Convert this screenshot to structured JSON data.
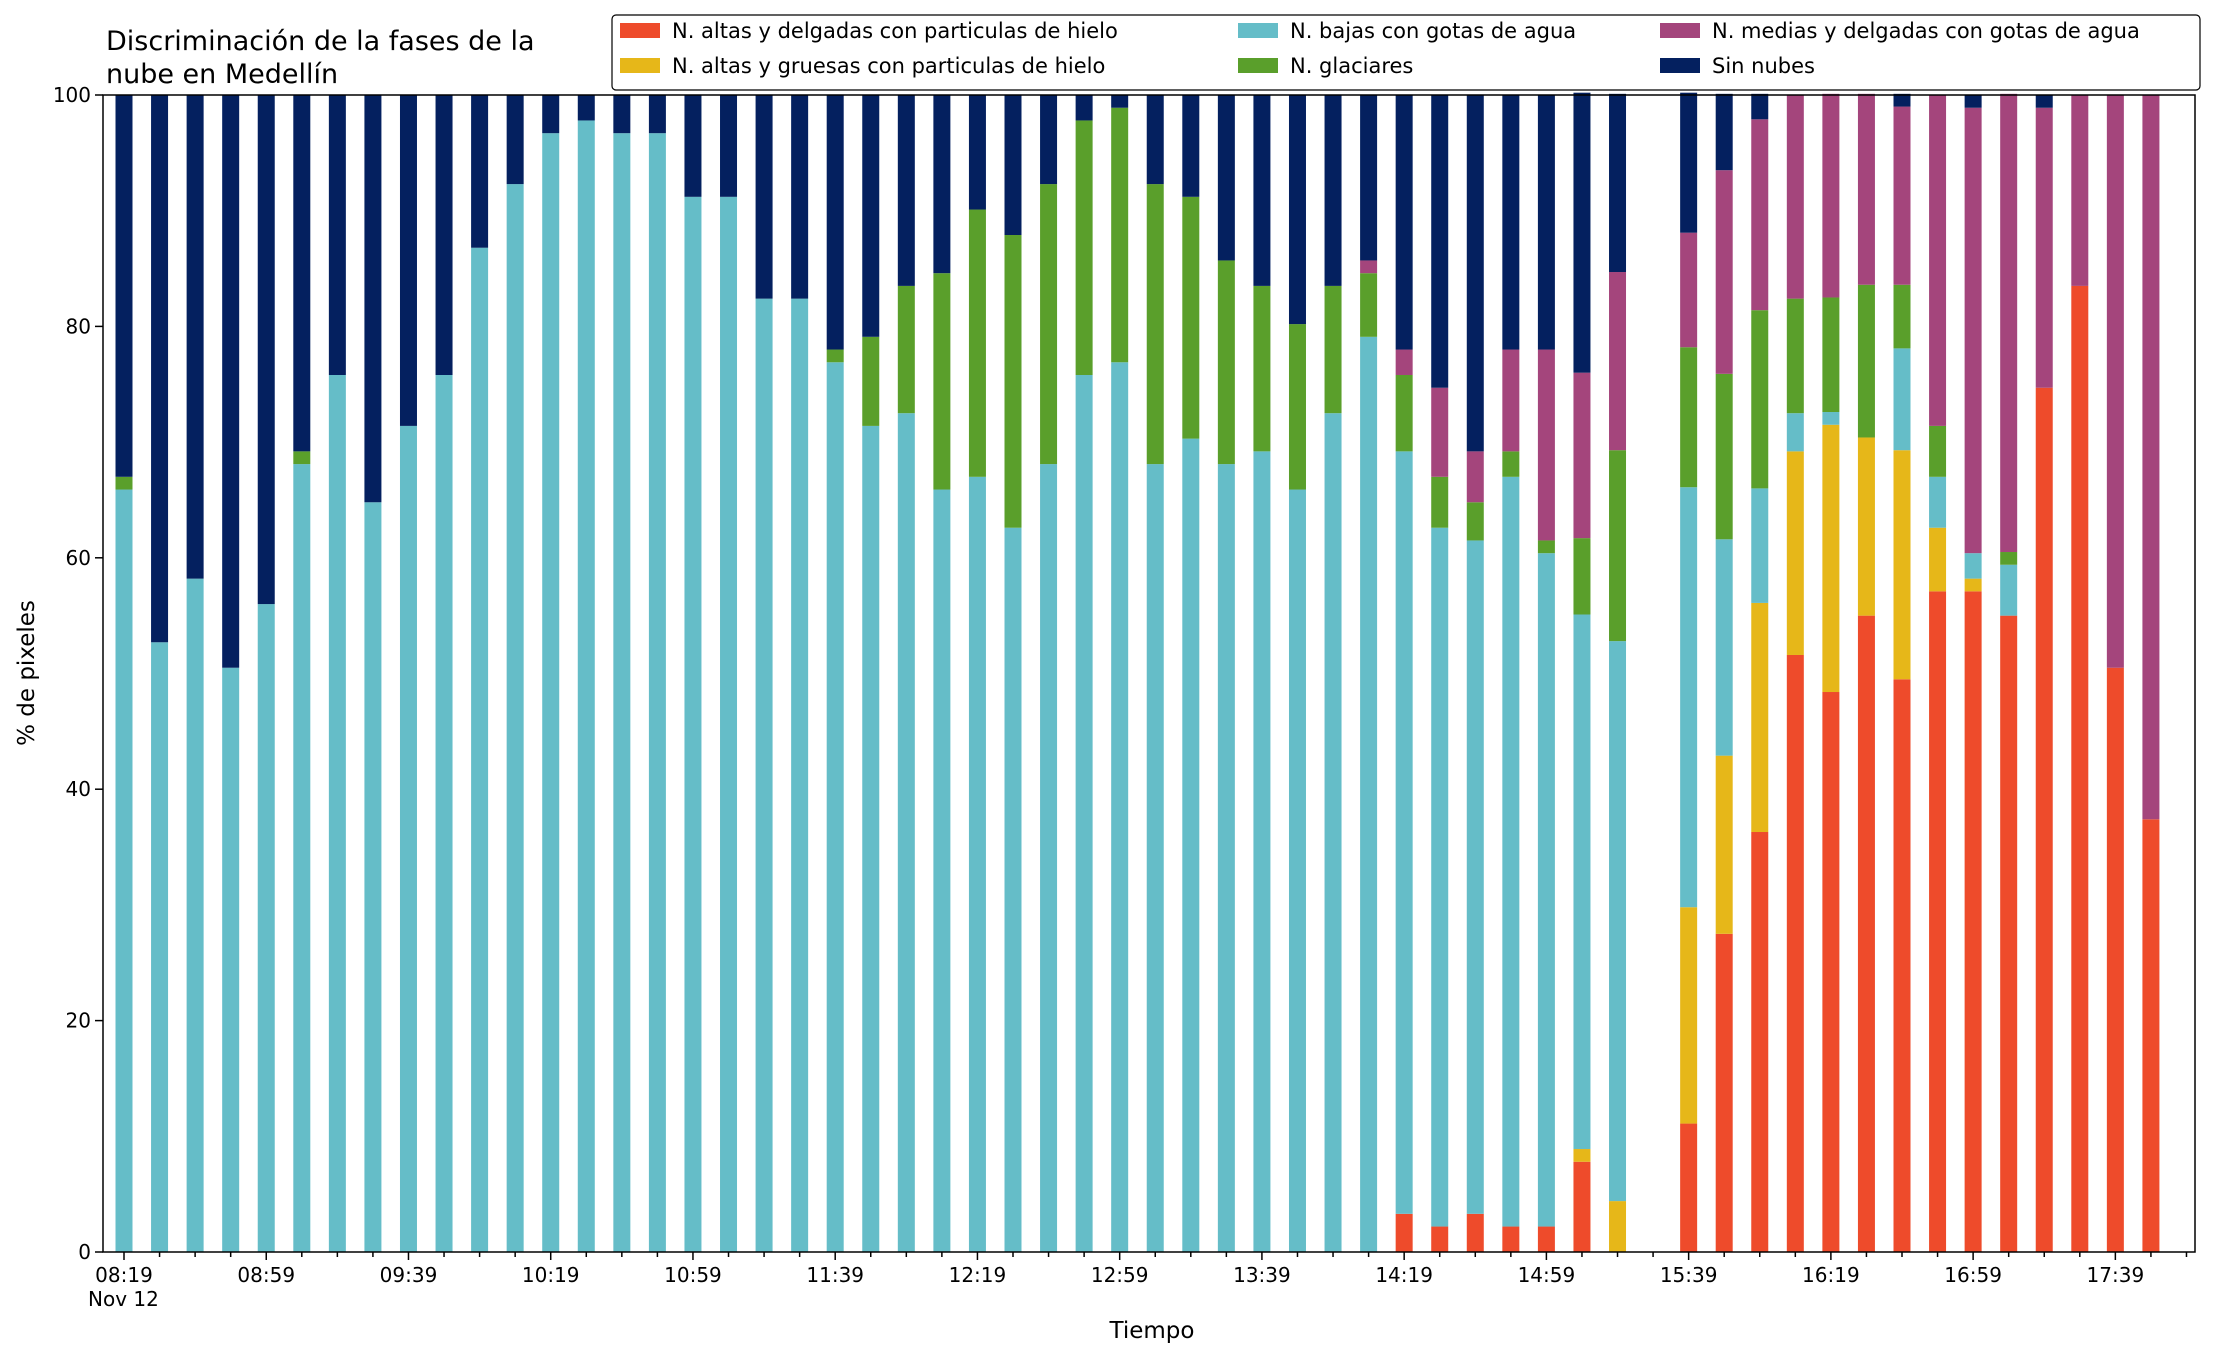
{
  "chart_data": {
    "type": "bar",
    "stacked": true,
    "title": "Discriminación de la fases de la nube en Medellín",
    "title_lines": [
      "Discriminación de la fases de la",
      "nube en Medellín"
    ],
    "xlabel": "Tiempo",
    "ylabel": "% de pixeles",
    "ylim": [
      0,
      100
    ],
    "yticks": [
      0,
      20,
      40,
      60,
      80,
      100
    ],
    "x_start": "2022-11-12 08:19",
    "x_end": "2022-11-12 17:49",
    "x_step_minutes": 10,
    "xtick_labels": [
      {
        "time": "08:19",
        "sub": "Nov 12"
      },
      {
        "time": "08:59"
      },
      {
        "time": "09:39"
      },
      {
        "time": "10:19"
      },
      {
        "time": "10:59"
      },
      {
        "time": "11:39"
      },
      {
        "time": "12:19"
      },
      {
        "time": "12:59"
      },
      {
        "time": "13:39"
      },
      {
        "time": "14:19"
      },
      {
        "time": "14:59"
      },
      {
        "time": "15:39"
      },
      {
        "time": "16:19"
      },
      {
        "time": "16:59"
      },
      {
        "time": "17:39"
      }
    ],
    "legend_position": "top-right",
    "grid": false,
    "categories": [
      "08:19",
      "08:29",
      "08:39",
      "08:49",
      "08:59",
      "09:09",
      "09:19",
      "09:29",
      "09:39",
      "09:49",
      "09:59",
      "10:09",
      "10:19",
      "10:29",
      "10:39",
      "10:49",
      "10:59",
      "11:09",
      "11:19",
      "11:29",
      "11:39",
      "11:49",
      "11:59",
      "12:09",
      "12:19",
      "12:29",
      "12:39",
      "12:49",
      "12:59",
      "13:09",
      "13:19",
      "13:29",
      "13:39",
      "13:49",
      "13:59",
      "14:09",
      "14:19",
      "14:29",
      "14:39",
      "14:49",
      "14:59",
      "15:09",
      "15:19",
      "15:29",
      "15:39",
      "15:49",
      "15:59",
      "16:09",
      "16:19",
      "16:29",
      "16:39",
      "16:49",
      "16:59",
      "17:09",
      "17:19",
      "17:29",
      "17:39",
      "17:49"
    ],
    "series": [
      {
        "name": "N. altas y delgadas con particulas de hielo",
        "color": "#ee4b2b",
        "values": [
          0,
          0,
          0,
          0,
          0,
          0,
          0,
          0,
          0,
          0,
          0,
          0,
          0,
          0,
          0,
          0,
          0,
          0,
          0,
          0,
          0,
          0,
          0,
          0,
          0,
          0,
          0,
          0,
          0,
          0,
          0,
          0,
          0,
          0,
          0,
          0,
          3.3,
          2.2,
          3.3,
          2.2,
          2.2,
          7.8,
          0,
          null,
          11.1,
          27.5,
          36.3,
          51.6,
          48.4,
          55.0,
          49.5,
          57.1,
          57.1,
          55.0,
          74.7,
          83.5,
          50.5,
          37.4
        ]
      },
      {
        "name": "N. altas y gruesas con particulas de hielo",
        "color": "#e6b719",
        "values": [
          0,
          0,
          0,
          0,
          0,
          0,
          0,
          0,
          0,
          0,
          0,
          0,
          0,
          0,
          0,
          0,
          0,
          0,
          0,
          0,
          0,
          0,
          0,
          0,
          0,
          0,
          0,
          0,
          0,
          0,
          0,
          0,
          0,
          0,
          0,
          0,
          0,
          0,
          0,
          0,
          0,
          1.1,
          4.4,
          null,
          18.7,
          15.4,
          19.8,
          17.6,
          23.1,
          15.4,
          19.8,
          5.5,
          1.1,
          0,
          0,
          0,
          0,
          0
        ]
      },
      {
        "name": "N. bajas con gotas de agua",
        "color": "#65bdc8",
        "values": [
          65.9,
          52.7,
          58.2,
          50.5,
          56.0,
          68.1,
          75.8,
          64.8,
          71.4,
          75.8,
          86.8,
          92.3,
          96.7,
          97.8,
          96.7,
          96.7,
          91.2,
          91.2,
          82.4,
          82.4,
          76.9,
          71.4,
          72.5,
          65.9,
          67.0,
          62.6,
          68.1,
          75.8,
          76.9,
          68.1,
          70.3,
          68.1,
          69.2,
          65.9,
          72.5,
          79.1,
          65.9,
          60.4,
          58.2,
          64.8,
          58.2,
          46.2,
          48.4,
          null,
          36.3,
          18.7,
          9.9,
          3.3,
          1.1,
          0,
          8.8,
          4.4,
          2.2,
          4.4,
          0,
          0,
          0,
          0
        ]
      },
      {
        "name": "N. glaciares",
        "color": "#5a9f2b",
        "values": [
          1.1,
          0,
          0,
          0,
          0,
          1.1,
          0,
          0,
          0,
          0,
          0,
          0,
          0,
          0,
          0,
          0,
          0,
          0,
          0,
          0,
          1.1,
          7.7,
          11.0,
          18.7,
          23.1,
          25.3,
          24.2,
          22.0,
          22.0,
          24.2,
          20.9,
          17.6,
          14.3,
          14.3,
          11.0,
          5.5,
          6.6,
          4.4,
          3.3,
          2.2,
          1.1,
          6.6,
          16.5,
          null,
          12.1,
          14.3,
          15.4,
          9.9,
          9.9,
          13.2,
          5.5,
          4.4,
          0,
          1.1,
          0,
          0,
          0,
          0
        ]
      },
      {
        "name": "N. medias y delgadas con gotas de agua",
        "color": "#a4457c",
        "values": [
          0,
          0,
          0,
          0,
          0,
          0,
          0,
          0,
          0,
          0,
          0,
          0,
          0,
          0,
          0,
          0,
          0,
          0,
          0,
          0,
          0,
          0,
          0,
          0,
          0,
          0,
          0,
          0,
          0,
          0,
          0,
          0,
          0,
          0,
          0,
          1.1,
          2.2,
          7.7,
          4.4,
          8.8,
          16.5,
          14.3,
          15.4,
          null,
          9.9,
          17.6,
          16.5,
          17.6,
          17.6,
          16.5,
          15.4,
          28.6,
          38.5,
          39.6,
          24.2,
          16.5,
          49.5,
          62.6
        ]
      },
      {
        "name": "Sin nubes",
        "color": "#04205f",
        "values": [
          33.0,
          47.3,
          41.8,
          49.5,
          44.0,
          30.8,
          24.2,
          35.2,
          28.6,
          24.2,
          13.2,
          7.7,
          3.3,
          2.2,
          3.3,
          3.3,
          8.8,
          8.8,
          17.6,
          17.6,
          22.0,
          20.9,
          16.5,
          15.4,
          9.9,
          12.1,
          7.7,
          2.2,
          1.1,
          7.7,
          8.8,
          14.3,
          16.5,
          19.8,
          16.5,
          14.3,
          22.0,
          25.3,
          30.8,
          22.0,
          22.0,
          24.2,
          15.4,
          null,
          12.1,
          6.6,
          2.2,
          0,
          0,
          0,
          1.1,
          0,
          1.1,
          0,
          1.1,
          0,
          0,
          0
        ]
      }
    ]
  }
}
